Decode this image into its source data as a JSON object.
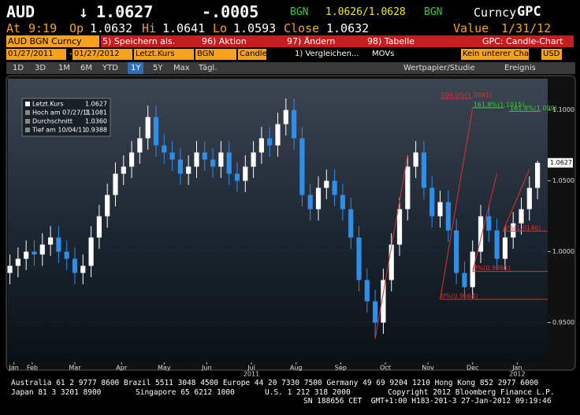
{
  "header": {
    "ticker": "AUD",
    "arrow": "↓",
    "last": "1.0627",
    "change": "-.0005",
    "src1": "BGN",
    "bidask": "1.0626/1.0628",
    "src2": "BGN",
    "curncy": "Curncy",
    "func": "GPC"
  },
  "quote": {
    "at": "At",
    "time": "9:19",
    "op_label": "Op",
    "open": "1.0632",
    "hi_label": "Hi",
    "high": "1.0641",
    "lo_label": "Lo",
    "low": "1.0593",
    "close_label": "Close",
    "close": "1.0632",
    "value_label": "Value",
    "value_date": "1/31/12"
  },
  "menu": {
    "security": "AUD BGN Curncy",
    "items": [
      "5) Speichern als.",
      "96) Aktion",
      "97) Ändern",
      "98) Tabelle"
    ],
    "function": "GPC: Candle-Chart"
  },
  "settings": {
    "start": "01/27/2011",
    "sep": "-",
    "end": "01/27/2012",
    "field": "Letzt.Kurs",
    "source": "BGN",
    "style": "Candle",
    "compare": "1) Vergleichen...",
    "movs": "MOVs",
    "lower": "Kein unterer Cha",
    "currency": "USD"
  },
  "toolbar": {
    "periods": [
      "1D",
      "3D",
      "1M",
      "6M",
      "YTD",
      "1Y",
      "5Y",
      "Max"
    ],
    "selected": "1Y",
    "freq": "Tägl.",
    "study": "Wertpapier/Studie",
    "event": "Ereignis"
  },
  "chart_data": {
    "type": "candlestick",
    "up_color": "#ffffff",
    "down_color": "#2f8fe8",
    "x": [
      0,
      4,
      8,
      12,
      16,
      20,
      24,
      28,
      32,
      36,
      40,
      44,
      48,
      52,
      56,
      60,
      64,
      68,
      72,
      76,
      80,
      84,
      88,
      92,
      96,
      100,
      104,
      108,
      112,
      116,
      120,
      124,
      128,
      132,
      136,
      140,
      144,
      148,
      152,
      156,
      160,
      164,
      168,
      172,
      176,
      180,
      184,
      188,
      192,
      196,
      200,
      204,
      208,
      212,
      216,
      220,
      224,
      228,
      232,
      236,
      240,
      244,
      248,
      252,
      256,
      260
    ],
    "open": [
      0.985,
      0.99,
      0.995,
      1.0,
      0.998,
      1.005,
      1.01,
      1.0,
      0.995,
      0.985,
      0.99,
      1.01,
      1.025,
      1.04,
      1.055,
      1.06,
      1.07,
      1.08,
      1.095,
      1.075,
      1.07,
      1.065,
      1.055,
      1.06,
      1.07,
      1.065,
      1.06,
      1.07,
      1.055,
      1.05,
      1.06,
      1.07,
      1.08,
      1.075,
      1.09,
      1.1,
      1.08,
      1.04,
      1.03,
      1.045,
      1.05,
      1.04,
      1.03,
      1.01,
      0.98,
      0.965,
      0.95,
      0.98,
      1.005,
      1.03,
      1.06,
      1.07,
      1.045,
      1.025,
      1.035,
      1.015,
      0.985,
      0.975,
      1.0,
      1.025,
      1.015,
      0.995,
      1.01,
      1.02,
      1.03,
      1.045
    ],
    "high": [
      0.998,
      1.003,
      1.008,
      1.008,
      1.013,
      1.018,
      1.018,
      1.008,
      1.003,
      0.998,
      1.018,
      1.033,
      1.048,
      1.063,
      1.068,
      1.078,
      1.088,
      1.103,
      1.103,
      1.083,
      1.078,
      1.073,
      1.068,
      1.078,
      1.078,
      1.073,
      1.078,
      1.078,
      1.063,
      1.068,
      1.078,
      1.088,
      1.088,
      1.098,
      1.1081,
      1.108,
      1.088,
      1.048,
      1.053,
      1.058,
      1.058,
      1.048,
      1.038,
      1.018,
      0.988,
      0.973,
      0.988,
      1.013,
      1.038,
      1.068,
      1.078,
      1.078,
      1.053,
      1.043,
      1.043,
      1.023,
      0.993,
      1.008,
      1.033,
      1.033,
      1.023,
      1.018,
      1.028,
      1.038,
      1.053,
      1.0641
    ],
    "low": [
      0.977,
      0.982,
      0.987,
      0.99,
      0.99,
      0.997,
      0.992,
      0.987,
      0.977,
      0.977,
      0.982,
      1.002,
      1.017,
      1.032,
      1.047,
      1.052,
      1.062,
      1.072,
      1.067,
      1.062,
      1.057,
      1.047,
      1.047,
      1.052,
      1.057,
      1.052,
      1.052,
      1.047,
      1.042,
      1.042,
      1.052,
      1.062,
      1.067,
      1.067,
      1.082,
      1.072,
      1.032,
      1.022,
      1.022,
      1.037,
      1.032,
      1.022,
      1.002,
      0.972,
      0.957,
      0.9388,
      0.942,
      0.972,
      0.997,
      1.022,
      1.052,
      1.037,
      1.017,
      1.017,
      1.007,
      0.977,
      0.967,
      0.967,
      0.992,
      1.007,
      0.987,
      0.987,
      1.002,
      1.012,
      1.022,
      1.037
    ],
    "close": [
      0.99,
      0.995,
      1.0,
      0.998,
      1.005,
      1.01,
      1.0,
      0.995,
      0.985,
      0.99,
      1.01,
      1.025,
      1.04,
      1.055,
      1.06,
      1.07,
      1.08,
      1.095,
      1.075,
      1.07,
      1.065,
      1.055,
      1.06,
      1.07,
      1.065,
      1.06,
      1.07,
      1.055,
      1.05,
      1.06,
      1.07,
      1.08,
      1.075,
      1.09,
      1.1,
      1.08,
      1.04,
      1.03,
      1.045,
      1.05,
      1.04,
      1.03,
      1.01,
      0.98,
      0.965,
      0.95,
      0.98,
      1.005,
      1.03,
      1.06,
      1.07,
      1.045,
      1.025,
      1.035,
      1.015,
      0.985,
      0.975,
      1.0,
      1.025,
      1.015,
      0.995,
      1.01,
      1.02,
      1.03,
      1.045,
      1.0627
    ],
    "xlim": [
      -1,
      265
    ],
    "ylim": [
      0.922,
      1.122
    ],
    "yticks": [
      {
        "value": 1.1,
        "label": "1.1000"
      },
      {
        "value": 1.05,
        "label": "1.0500"
      },
      {
        "value": 1.0,
        "label": "1.0000"
      },
      {
        "value": 0.95,
        "label": "0.9500"
      }
    ],
    "xticks": [
      {
        "value": 2,
        "label": "Jan"
      },
      {
        "value": 11,
        "label": "Feb"
      },
      {
        "value": 32,
        "label": "Mar"
      },
      {
        "value": 55,
        "label": "Apr"
      },
      {
        "value": 76,
        "label": "May"
      },
      {
        "value": 97,
        "label": "Jun"
      },
      {
        "value": 119,
        "label": "Jul"
      },
      {
        "value": 141,
        "label": "Aug"
      },
      {
        "value": 163,
        "label": "Sep"
      },
      {
        "value": 185,
        "label": "Oct"
      },
      {
        "value": 206,
        "label": "Nov"
      },
      {
        "value": 228,
        "label": "Dec"
      },
      {
        "value": 250,
        "label": "Jan"
      }
    ],
    "year_labels": [
      {
        "value": 119,
        "label": "2011"
      },
      {
        "value": 250,
        "label": "2012"
      }
    ],
    "last_label": "1.0627",
    "legend": [
      {
        "label": "Letzt.Kurs",
        "value": "1.0627"
      },
      {
        "label": "Hoch am 07/27/11",
        "value": "1.1081"
      },
      {
        "label": "Durchschnitt",
        "value": "1.0360"
      },
      {
        "label": "Tief am 10/04/11",
        "value": "0.9388"
      }
    ],
    "levels": [
      {
        "label": "0%(0.9664)",
        "value": 0.9664,
        "x": 212,
        "color": "#e03030"
      },
      {
        "label": "0%(0.9861)",
        "value": 0.9861,
        "x": 228,
        "color": "#e03030"
      },
      {
        "label": "0%(1.0146)",
        "value": 1.0146,
        "x": 243,
        "color": "#e03030"
      }
    ],
    "targets": [
      {
        "label": "100.0%(1.1081)",
        "value": 1.1081,
        "x": 212,
        "color": "#e03030"
      },
      {
        "label": "161.8%(1.1015)",
        "value": 1.1015,
        "x": 228,
        "color": "#30d030"
      },
      {
        "label": "161.8%(1.099)",
        "value": 1.099,
        "x": 246,
        "color": "#30d030"
      }
    ],
    "trendlines": [
      {
        "x": [
          180,
          196
        ],
        "y": [
          0.9388,
          1.068
        ]
      },
      {
        "x": [
          212,
          228
        ],
        "y": [
          0.9664,
          1.1015
        ]
      },
      {
        "x": [
          228,
          240
        ],
        "y": [
          0.9861,
          1.055
        ]
      },
      {
        "x": [
          243,
          256
        ],
        "y": [
          1.0146,
          1.058
        ]
      }
    ]
  },
  "footer": {
    "line1": "Australia 61 2 9777 8600 Brazil 5511 3048 4500 Europe 44 20 7330 7500 Germany 49 69 9204 1210 Hong Kong 852 2977 6000",
    "japan": "Japan 81 3 3201 8900",
    "singapore": "Singapore 65 6212 1000",
    "us": "U.S. 1 212 318 2000",
    "copyright": "Copyright 2012 Bloomberg Finance L.P.",
    "sn": "SN 188656 CET  GMT+1:00 H183-201-3 27-Jan-2012 09:19:46"
  }
}
